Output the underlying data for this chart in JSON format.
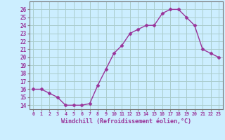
{
  "x": [
    0,
    1,
    2,
    3,
    4,
    5,
    6,
    7,
    8,
    9,
    10,
    11,
    12,
    13,
    14,
    15,
    16,
    17,
    18,
    19,
    20,
    21,
    22,
    23
  ],
  "y": [
    16,
    16,
    15.5,
    15,
    14,
    14,
    14,
    14.2,
    16.5,
    18.5,
    20.5,
    21.5,
    23,
    23.5,
    24,
    24,
    25.5,
    26,
    26,
    25,
    24,
    21,
    20.5,
    20
  ],
  "line_color": "#993399",
  "marker": "D",
  "marker_size": 2.5,
  "bg_color": "#cceeff",
  "grid_color": "#aacccc",
  "xlabel": "Windchill (Refroidissement éolien,°C)",
  "xlabel_color": "#993399",
  "tick_color": "#993399",
  "ylabel_ticks": [
    14,
    15,
    16,
    17,
    18,
    19,
    20,
    21,
    22,
    23,
    24,
    25,
    26
  ],
  "xlim": [
    -0.5,
    23.5
  ],
  "ylim": [
    13.5,
    27
  ]
}
